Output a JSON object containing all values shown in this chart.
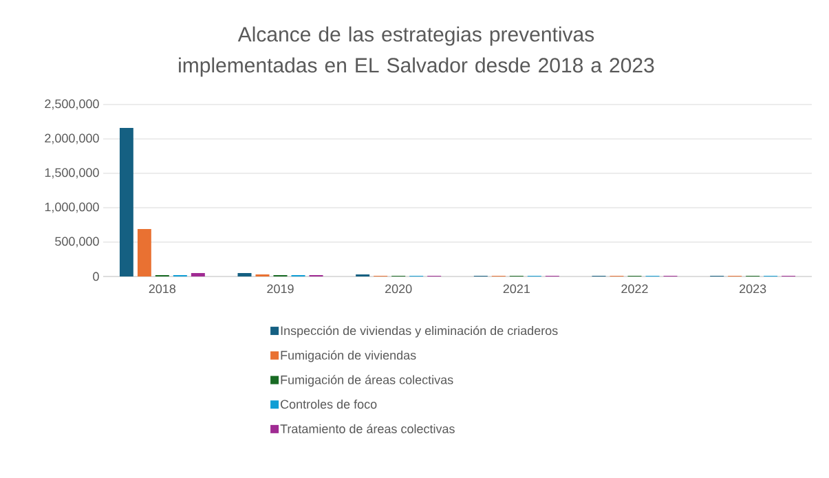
{
  "chart_data": {
    "type": "bar",
    "title": "Alcance de las estrategias preventivas implementadas en EL Salvador desde 2018 a 2023",
    "categories": [
      "2018",
      "2019",
      "2020",
      "2021",
      "2022",
      "2023"
    ],
    "series": [
      {
        "name": "Inspección de viviendas y eliminación de criaderos",
        "color": "#156082",
        "values": [
          2160000,
          50000,
          30000,
          10000,
          10000,
          10000
        ]
      },
      {
        "name": "Fumigación de viviendas",
        "color": "#E97132",
        "values": [
          690000,
          30000,
          10000,
          10000,
          10000,
          10000
        ]
      },
      {
        "name": "Fumigación de áreas colectivas",
        "color": "#196B24",
        "values": [
          20000,
          20000,
          10000,
          10000,
          10000,
          10000
        ]
      },
      {
        "name": "Controles de foco",
        "color": "#0F9ED5",
        "values": [
          20000,
          20000,
          10000,
          10000,
          10000,
          10000
        ]
      },
      {
        "name": "Tratamiento de áreas colectivas",
        "color": "#A02B93",
        "values": [
          50000,
          20000,
          10000,
          10000,
          10000,
          10000
        ]
      }
    ],
    "ylim": [
      0,
      2500000
    ],
    "yticks": [
      {
        "value": 0,
        "label": "0"
      },
      {
        "value": 500000,
        "label": "500,000"
      },
      {
        "value": 1000000,
        "label": "1,000,000"
      },
      {
        "value": 1500000,
        "label": "1,500,000"
      },
      {
        "value": 2000000,
        "label": "2,000,000"
      },
      {
        "value": 2500000,
        "label": "2,500,000"
      }
    ],
    "grid": "y",
    "legend": "bottom"
  }
}
